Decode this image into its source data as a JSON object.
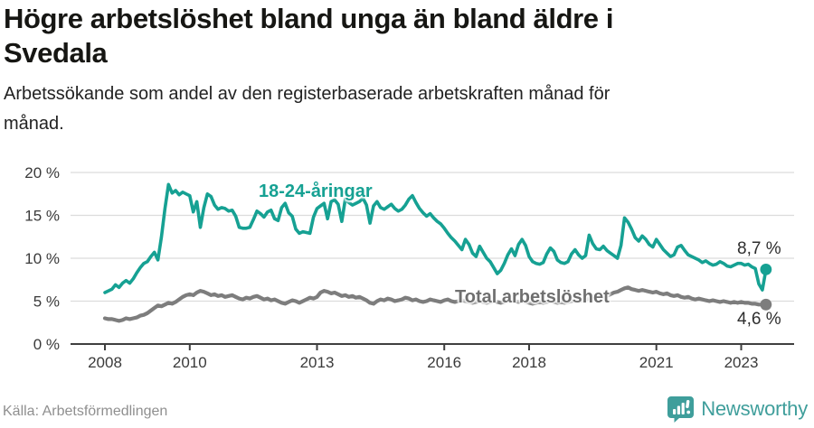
{
  "header": {
    "title": "Högre arbetslöshet bland unga än bland äldre i\nSvedala",
    "subtitle": "Arbetssökande som andel av den registerbaserade arbetskraften månad för\nmånad."
  },
  "footer": {
    "source": "Källa: Arbetsförmedlingen",
    "brand": "Newsworthy"
  },
  "colors": {
    "youth_line": "#16a193",
    "total_line": "#7d7d7d",
    "grid": "#dcdcdc",
    "axis": "#3f3f3f",
    "tick_label": "#3a3a3a",
    "brand_teal": "#3f9e9b",
    "title_text": "#161613",
    "end_label_text": "#2e2e2e"
  },
  "chart_data": {
    "type": "line",
    "title": "Högre arbetslöshet bland unga än bland äldre i Svedala",
    "subtitle": "Arbetssökande som andel av den registerbaserade arbetskraften månad för månad.",
    "unit": "%",
    "x_start": "2008-01",
    "x_end": "2023-08",
    "frequency": "monthly",
    "x_ticks": [
      2008,
      2010,
      2013,
      2016,
      2018,
      2021,
      2023
    ],
    "y_ticks": [
      {
        "v": 0,
        "label": "0 %"
      },
      {
        "v": 5,
        "label": "5 %"
      },
      {
        "v": 10,
        "label": "10 %"
      },
      {
        "v": 15,
        "label": "15 %"
      },
      {
        "v": 20,
        "label": "20 %"
      }
    ],
    "ylim": [
      0,
      20
    ],
    "grid": true,
    "legend_position": "inline-annotations",
    "series": [
      {
        "name": "18-24-åringar",
        "color": "#16a193",
        "end_label": "8,7 %",
        "end_value": 8.7,
        "values": [
          6.0,
          6.2,
          6.4,
          6.9,
          6.6,
          7.1,
          7.4,
          7.1,
          7.6,
          8.3,
          8.9,
          9.4,
          9.6,
          10.2,
          10.7,
          9.8,
          12.5,
          15.8,
          18.6,
          17.6,
          17.9,
          17.4,
          17.7,
          17.5,
          17.3,
          15.4,
          16.6,
          13.6,
          15.9,
          17.5,
          17.2,
          16.2,
          15.7,
          15.9,
          15.8,
          15.5,
          15.6,
          14.9,
          13.6,
          13.5,
          13.5,
          13.6,
          14.5,
          15.5,
          15.2,
          14.8,
          15.4,
          15.6,
          14.6,
          14.4,
          15.9,
          16.4,
          15.3,
          14.9,
          13.4,
          12.9,
          13.1,
          13.0,
          12.9,
          14.8,
          15.8,
          16.1,
          16.4,
          14.6,
          16.6,
          16.8,
          16.3,
          14.3,
          16.9,
          16.5,
          16.2,
          16.4,
          16.6,
          17.0,
          16.2,
          14.1,
          16.1,
          16.6,
          15.9,
          15.7,
          16.0,
          16.3,
          15.8,
          15.5,
          15.7,
          16.2,
          16.9,
          17.3,
          16.5,
          15.8,
          15.3,
          14.9,
          15.2,
          14.7,
          14.3,
          14.0,
          13.5,
          12.9,
          12.4,
          12.0,
          11.5,
          11.0,
          12.2,
          11.6,
          10.6,
          10.2,
          11.4,
          10.7,
          10.0,
          9.6,
          8.9,
          8.2,
          8.6,
          9.4,
          10.4,
          11.1,
          10.3,
          11.6,
          12.2,
          11.5,
          10.2,
          9.6,
          9.4,
          9.3,
          9.5,
          10.5,
          11.2,
          10.8,
          9.8,
          9.5,
          9.4,
          9.6,
          10.5,
          11.0,
          10.4,
          10.0,
          10.3,
          12.7,
          11.7,
          11.1,
          11.0,
          11.4,
          10.9,
          10.6,
          10.3,
          10.0,
          11.5,
          14.7,
          14.2,
          13.4,
          12.4,
          12.0,
          12.6,
          12.2,
          11.6,
          11.3,
          12.2,
          11.6,
          11.0,
          10.6,
          10.2,
          10.4,
          11.3,
          11.5,
          10.9,
          10.4,
          10.2,
          10.0,
          9.8,
          9.5,
          9.7,
          9.4,
          9.2,
          9.3,
          9.6,
          9.4,
          9.1,
          9.0,
          9.2,
          9.4,
          9.4,
          9.2,
          9.3,
          9.0,
          8.8,
          7.0,
          6.3,
          8.7
        ]
      },
      {
        "name": "Total arbetslöshet",
        "color": "#7d7d7d",
        "end_label": "4,6 %",
        "end_value": 4.6,
        "values": [
          3.0,
          2.9,
          2.9,
          2.8,
          2.7,
          2.8,
          3.0,
          2.9,
          3.0,
          3.1,
          3.3,
          3.4,
          3.6,
          3.9,
          4.2,
          4.5,
          4.4,
          4.6,
          4.8,
          4.7,
          4.9,
          5.2,
          5.5,
          5.7,
          5.8,
          5.7,
          6.0,
          6.2,
          6.1,
          5.9,
          5.7,
          5.8,
          5.6,
          5.7,
          5.5,
          5.6,
          5.7,
          5.5,
          5.3,
          5.2,
          5.4,
          5.3,
          5.5,
          5.6,
          5.4,
          5.2,
          5.3,
          5.1,
          5.2,
          5.0,
          4.8,
          4.7,
          4.9,
          5.1,
          5.0,
          4.8,
          5.0,
          5.2,
          5.4,
          5.3,
          5.5,
          6.0,
          6.2,
          6.1,
          5.9,
          6.0,
          5.8,
          5.6,
          5.7,
          5.5,
          5.6,
          5.4,
          5.5,
          5.3,
          5.1,
          4.8,
          4.7,
          5.0,
          5.2,
          5.1,
          5.3,
          5.2,
          5.0,
          5.1,
          5.2,
          5.4,
          5.3,
          5.1,
          5.2,
          5.0,
          4.9,
          5.0,
          5.2,
          5.1,
          5.0,
          4.9,
          5.1,
          5.2,
          5.0,
          4.9,
          5.0,
          5.1,
          5.0,
          4.9,
          4.8,
          4.9,
          5.0,
          4.9,
          4.8,
          4.9,
          5.0,
          4.9,
          4.8,
          4.9,
          5.0,
          5.1,
          5.0,
          4.9,
          5.0,
          4.9,
          4.8,
          4.7,
          4.8,
          4.9,
          4.8,
          4.9,
          5.0,
          4.9,
          4.8,
          4.9,
          4.8,
          4.9,
          5.0,
          5.1,
          5.0,
          5.1,
          5.2,
          5.3,
          5.2,
          5.3,
          5.4,
          5.5,
          5.6,
          5.8,
          6.0,
          6.1,
          6.3,
          6.5,
          6.6,
          6.4,
          6.3,
          6.2,
          6.3,
          6.2,
          6.1,
          6.0,
          6.1,
          5.9,
          5.8,
          5.9,
          5.7,
          5.6,
          5.7,
          5.5,
          5.4,
          5.5,
          5.3,
          5.2,
          5.3,
          5.2,
          5.1,
          5.0,
          5.1,
          5.0,
          4.9,
          5.0,
          4.9,
          4.8,
          4.9,
          4.8,
          4.9,
          4.8,
          4.8,
          4.7,
          4.7,
          4.6,
          4.6,
          4.6
        ]
      }
    ]
  }
}
